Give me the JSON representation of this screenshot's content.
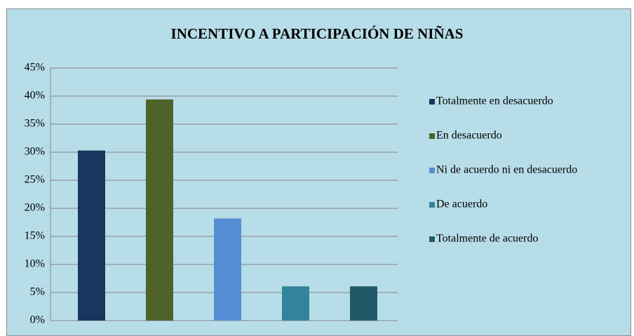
{
  "chart_data": {
    "type": "bar",
    "title": "INCENTIVO A PARTICIPACIÓN DE NIÑAS",
    "series": [
      {
        "name": "Totalmente en desacuerdo",
        "color": "#17375e",
        "values": [
          30.3
        ]
      },
      {
        "name": "En desacuerdo",
        "color": "#4f6228",
        "values": [
          39.4
        ]
      },
      {
        "name": "Ni de acuerdo ni en desacuerdo",
        "color": "#558ed5",
        "values": [
          18.2
        ]
      },
      {
        "name": "De acuerdo",
        "color": "#31849b",
        "values": [
          6.1
        ]
      },
      {
        "name": "Totalmente de acuerdo",
        "color": "#215968",
        "values": [
          6.1
        ]
      }
    ],
    "ylim": [
      0,
      45
    ],
    "yticks": [
      {
        "value": 0,
        "label": "0%"
      },
      {
        "value": 5,
        "label": "5%"
      },
      {
        "value": 10,
        "label": "10%"
      },
      {
        "value": 15,
        "label": "15%"
      },
      {
        "value": 20,
        "label": "20%"
      },
      {
        "value": 25,
        "label": "25%"
      },
      {
        "value": 30,
        "label": "30%"
      },
      {
        "value": 35,
        "label": "35%"
      },
      {
        "value": 40,
        "label": "40%"
      },
      {
        "value": 45,
        "label": "45%"
      }
    ],
    "grid": true,
    "legend": "right"
  }
}
